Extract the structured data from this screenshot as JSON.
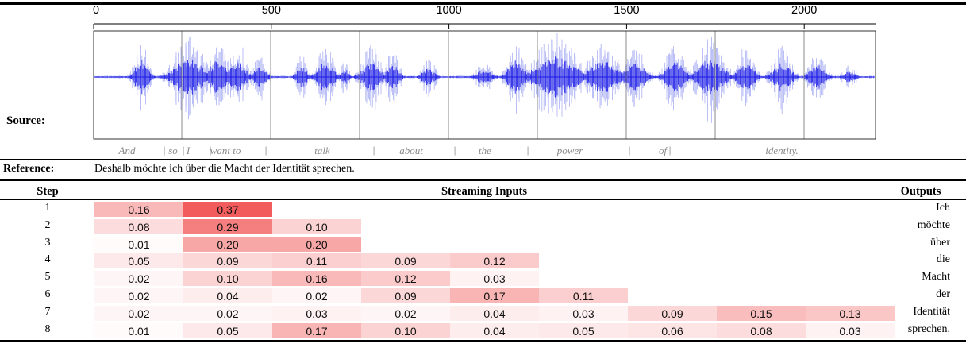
{
  "source_label": "Source:",
  "waveform_axis_ticks": [
    "0",
    "500",
    "1000",
    "1500",
    "2000"
  ],
  "source_words": [
    "And",
    "so",
    "I",
    "want to",
    "talk",
    "about",
    "the",
    "power",
    "of",
    "identity."
  ],
  "reference_label": "Reference:",
  "reference_text": "Deshalb möchte ich über die Macht der Identität sprechen.",
  "table": {
    "headers": {
      "step": "Step",
      "inputs": "Streaming Inputs",
      "outputs": "Outputs"
    },
    "rows": [
      {
        "step": "1",
        "values": [
          "0.16",
          "0.37"
        ],
        "output": "Ich"
      },
      {
        "step": "2",
        "values": [
          "0.08",
          "0.29",
          "0.10"
        ],
        "output": "möchte"
      },
      {
        "step": "3",
        "values": [
          "0.01",
          "0.20",
          "0.20"
        ],
        "output": "über"
      },
      {
        "step": "4",
        "values": [
          "0.05",
          "0.09",
          "0.11",
          "0.09",
          "0.12"
        ],
        "output": "die"
      },
      {
        "step": "5",
        "values": [
          "0.02",
          "0.10",
          "0.16",
          "0.12",
          "0.03"
        ],
        "output": "Macht"
      },
      {
        "step": "6",
        "values": [
          "0.02",
          "0.04",
          "0.02",
          "0.09",
          "0.17",
          "0.11"
        ],
        "output": "der"
      },
      {
        "step": "7",
        "values": [
          "0.02",
          "0.02",
          "0.03",
          "0.02",
          "0.04",
          "0.03",
          "0.09",
          "0.15",
          "0.13"
        ],
        "output": "Identität"
      },
      {
        "step": "8",
        "values": [
          "0.01",
          "0.05",
          "0.17",
          "0.10",
          "0.04",
          "0.05",
          "0.06",
          "0.08",
          "0.03"
        ],
        "output": "sprechen."
      }
    ]
  },
  "colors": {
    "wave_dark": "#1a1ae6",
    "wave_light": "#aab0f5",
    "heat_max": "#f25c5c"
  }
}
